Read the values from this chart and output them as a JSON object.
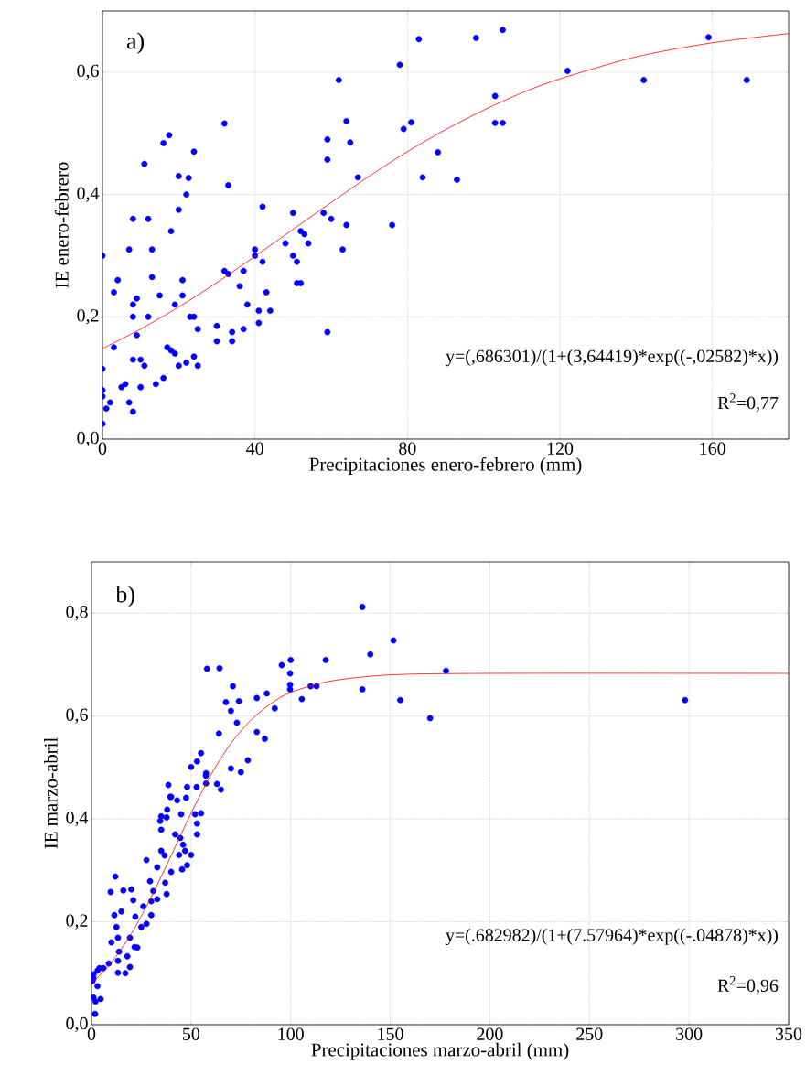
{
  "chart_data": [
    {
      "type": "scatter",
      "xlabel": "Precipitaciones enero-febrero (mm)",
      "ylabel": "IE enero-febrero",
      "xlim": [
        0,
        180
      ],
      "ylim": [
        0,
        0.7
      ],
      "xticks": [
        0,
        40,
        80,
        120,
        160
      ],
      "yticks": [
        {
          "value": 0,
          "label": "0,0"
        },
        {
          "value": 0.2,
          "label": "0,2"
        },
        {
          "value": 0.4,
          "label": "0,4"
        },
        {
          "value": 0.6,
          "label": "0,6"
        }
      ],
      "grid": true,
      "annotations": [
        "a)",
        "y=(,686301)/(1+(3,64419)*exp((-,02582)*x))",
        "R$^{2}$=0,77"
      ],
      "series": [
        {
          "color": "#0000ff",
          "marker": "circle",
          "x": [
            0,
            0,
            0,
            0,
            0,
            1,
            2,
            3,
            3,
            4,
            5,
            6,
            7,
            7,
            8,
            8,
            8,
            8,
            8,
            9,
            9,
            10,
            10,
            11,
            11,
            12,
            12,
            13,
            13,
            14,
            16,
            15,
            17.5,
            16,
            17,
            18,
            18,
            19,
            19,
            20,
            20,
            20,
            21,
            21,
            22.6,
            22,
            22,
            23,
            24,
            24,
            24,
            25,
            25,
            30,
            30,
            32,
            32,
            33,
            33,
            34,
            34,
            36,
            37,
            37,
            38,
            40,
            40,
            41,
            41,
            42,
            42,
            43,
            44,
            48,
            50,
            50,
            51,
            51,
            52,
            52,
            53,
            54,
            59,
            59,
            58,
            59,
            60,
            62,
            64,
            63,
            65,
            64,
            67,
            78,
            76,
            79,
            81,
            83,
            88,
            84,
            93,
            98,
            103,
            103,
            105,
            105,
            122,
            142,
            159,
            169
          ],
          "values": [
            0.3,
            0.115,
            0.08,
            0.07,
            0.025,
            0.05,
            0.06,
            0.24,
            0.15,
            0.26,
            0.085,
            0.09,
            0.06,
            0.31,
            0.36,
            0.22,
            0.2,
            0.13,
            0.045,
            0.23,
            0.17,
            0.13,
            0.085,
            0.45,
            0.12,
            0.36,
            0.2,
            0.31,
            0.265,
            0.09,
            0.484,
            0.235,
            0.497,
            0.1,
            0.15,
            0.34,
            0.145,
            0.22,
            0.14,
            0.43,
            0.375,
            0.12,
            0.26,
            0.235,
            0.427,
            0.4,
            0.125,
            0.2,
            0.47,
            0.2,
            0.135,
            0.18,
            0.12,
            0.16,
            0.185,
            0.516,
            0.275,
            0.415,
            0.27,
            0.16,
            0.175,
            0.25,
            0.18,
            0.275,
            0.22,
            0.31,
            0.3,
            0.19,
            0.21,
            0.38,
            0.29,
            0.24,
            0.21,
            0.32,
            0.37,
            0.3,
            0.29,
            0.255,
            0.34,
            0.255,
            0.335,
            0.32,
            0.49,
            0.457,
            0.37,
            0.175,
            0.36,
            0.587,
            0.52,
            0.31,
            0.485,
            0.35,
            0.428,
            0.612,
            0.35,
            0.507,
            0.518,
            0.654,
            0.469,
            0.428,
            0.424,
            0.656,
            0.517,
            0.561,
            0.669,
            0.517,
            0.602,
            0.587,
            0.657,
            0.587
          ]
        },
        {
          "type": "line",
          "color": "#ff0000",
          "line_style": "solid",
          "x": [
            0,
            10,
            20,
            30,
            40,
            50,
            60,
            70,
            80,
            90,
            100,
            110,
            120,
            140,
            160,
            180
          ],
          "values": [
            0.148,
            0.18,
            0.216,
            0.256,
            0.299,
            0.343,
            0.387,
            0.43,
            0.47,
            0.506,
            0.538,
            0.566,
            0.589,
            0.625,
            0.648,
            0.663
          ]
        }
      ]
    },
    {
      "type": "scatter",
      "xlabel": "Precipitaciones marzo-abril (mm)",
      "ylabel": "IE marzo-abril",
      "xlim": [
        0,
        350
      ],
      "ylim": [
        0,
        0.9
      ],
      "xticks": [
        0,
        50,
        100,
        150,
        200,
        250,
        300,
        350
      ],
      "yticks": [
        {
          "value": 0,
          "label": "0,0"
        },
        {
          "value": 0.2,
          "label": "0,2"
        },
        {
          "value": 0.4,
          "label": "0,4"
        },
        {
          "value": 0.6,
          "label": "0,6"
        },
        {
          "value": 0.8,
          "label": "0,8"
        }
      ],
      "grid": true,
      "annotations": [
        "b)",
        "y=(.682982)/(1+(7.57964)*exp((-.04878)*x))",
        "R$^{2}$=0,96"
      ],
      "series": [
        {
          "color": "#0000ff",
          "marker": "circle",
          "x": [
            136,
            151.6,
            140,
            117.6,
            178,
            136,
            155,
            170,
            298,
            100,
            95.5,
            99.7,
            99.7,
            99.7,
            110,
            113,
            105.6,
            58,
            64.3,
            71,
            67.5,
            74,
            70,
            83,
            88,
            92,
            73,
            64,
            83,
            87,
            55,
            78.5,
            70,
            75,
            50,
            53,
            57.5,
            57.5,
            63,
            65,
            38.6,
            48,
            52.8,
            39.5,
            43,
            47.5,
            38,
            45,
            35,
            52,
            55,
            53,
            53,
            44.6,
            35,
            57.4,
            40,
            37.7,
            34.5,
            35,
            36.7,
            47,
            45.5,
            40,
            37,
            33,
            27.6,
            37.7,
            29.4,
            33,
            30,
            27.6,
            12,
            9.6,
            16,
            20,
            21,
            11.5,
            12.5,
            13.3,
            13.8,
            19.3,
            21.6,
            18,
            19.3,
            13.3,
            8.7,
            4,
            13.3,
            1,
            3,
            1,
            4.6,
            1.8,
            1,
            42,
            44,
            46,
            48,
            50,
            25,
            26,
            30,
            31,
            23,
            22,
            15,
            17,
            10,
            6,
            3,
            2,
            0.5
          ],
          "values": [
            0.812,
            0.747,
            0.72,
            0.709,
            0.688,
            0.652,
            0.631,
            0.596,
            0.631,
            0.709,
            0.699,
            0.683,
            0.661,
            0.652,
            0.658,
            0.658,
            0.633,
            0.692,
            0.693,
            0.658,
            0.627,
            0.629,
            0.61,
            0.635,
            0.644,
            0.615,
            0.587,
            0.566,
            0.569,
            0.556,
            0.528,
            0.514,
            0.498,
            0.491,
            0.501,
            0.512,
            0.489,
            0.469,
            0.468,
            0.457,
            0.466,
            0.462,
            0.462,
            0.443,
            0.436,
            0.441,
            0.418,
            0.409,
            0.405,
            0.409,
            0.411,
            0.391,
            0.37,
            0.363,
            0.379,
            0.484,
            0.443,
            0.403,
            0.396,
            0.338,
            0.329,
            0.338,
            0.302,
            0.297,
            0.276,
            0.306,
            0.32,
            0.254,
            0.279,
            0.244,
            0.213,
            0.196,
            0.288,
            0.258,
            0.261,
            0.263,
            0.242,
            0.213,
            0.19,
            0.169,
            0.142,
            0.169,
            0.151,
            0.133,
            0.112,
            0.124,
            0.119,
            0.11,
            0.101,
            0.098,
            0.075,
            0.053,
            0.05,
            0.021,
            0.09,
            0.37,
            0.33,
            0.35,
            0.31,
            0.33,
            0.19,
            0.23,
            0.24,
            0.26,
            0.15,
            0.21,
            0.22,
            0.1,
            0.16,
            0.11,
            0.105,
            0.045,
            0.085
          ]
        },
        {
          "type": "line",
          "color": "#ff0000",
          "line_style": "solid",
          "x": [
            0,
            10,
            20,
            30,
            40,
            50,
            60,
            70,
            80,
            90,
            100,
            120,
            150,
            200,
            350
          ],
          "values": [
            0.08,
            0.121,
            0.177,
            0.248,
            0.329,
            0.411,
            0.486,
            0.547,
            0.592,
            0.624,
            0.646,
            0.668,
            0.68,
            0.683,
            0.683
          ]
        }
      ]
    }
  ]
}
